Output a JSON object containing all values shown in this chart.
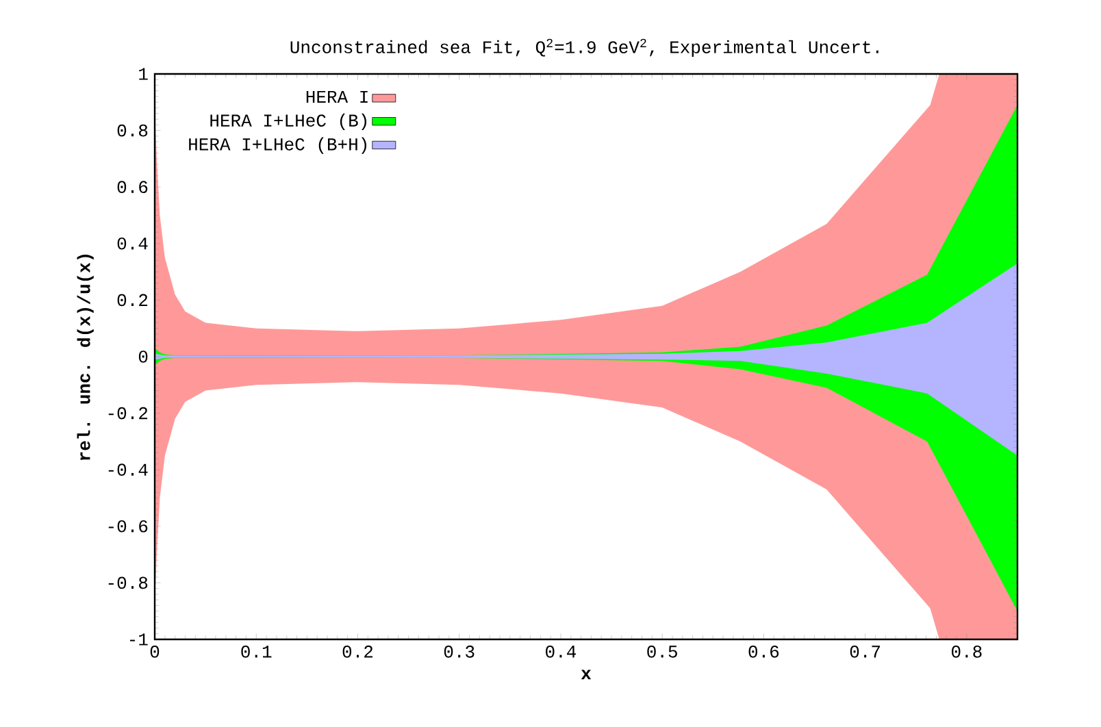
{
  "chart_data": {
    "type": "line",
    "title": "Unconstrained sea Fit, Q$^{2}$=1.9 GeV$^{2}$, Experimental Uncert.",
    "xlabel": "x",
    "ylabel": "rel. unc. d(x)/u(x)",
    "xlim": [
      0,
      0.85
    ],
    "ylim": [
      -1,
      1
    ],
    "xticks": [
      0,
      0.1,
      0.2,
      0.3,
      0.4,
      0.5,
      0.6,
      0.7,
      0.8
    ],
    "yticks": [
      -1,
      -0.8,
      -0.6,
      -0.4,
      -0.2,
      0,
      0.2,
      0.4,
      0.6,
      0.8,
      1
    ],
    "grid": false,
    "legend": "top left",
    "series": [
      {
        "name": "HERA I",
        "color": "#ff9999",
        "x": [
          0,
          0.002,
          0.005,
          0.01,
          0.02,
          0.03,
          0.05,
          0.1,
          0.2,
          0.3,
          0.4,
          0.5,
          0.577,
          0.662,
          0.764,
          0.773,
          0.85
        ],
        "values": [
          null,
          null,
          null,
          null,
          null,
          null,
          null,
          null,
          null,
          null,
          null,
          null,
          null,
          null,
          null,
          null,
          null
        ],
        "upper": [
          0.87,
          0.7,
          0.5,
          0.35,
          0.22,
          0.16,
          0.12,
          0.1,
          0.09,
          0.1,
          0.13,
          0.18,
          0.3,
          0.47,
          0.89,
          1,
          1
        ],
        "lower": [
          -0.87,
          -0.7,
          -0.5,
          -0.35,
          -0.22,
          -0.16,
          -0.12,
          -0.1,
          -0.09,
          -0.1,
          -0.13,
          -0.18,
          -0.3,
          -0.47,
          -0.89,
          -1,
          -1
        ]
      },
      {
        "name": "HERA I+LHeC (B)",
        "color": "#00ff00",
        "x": [
          0,
          0.005,
          0.01,
          0.02,
          0.1,
          0.3,
          0.5,
          0.577,
          0.662,
          0.761,
          0.85
        ],
        "values": [
          null,
          null,
          null,
          null,
          null,
          null,
          null,
          null,
          null,
          null,
          null
        ],
        "upper": [
          0.03,
          0.015,
          0.008,
          0.005,
          0.004,
          0.005,
          0.015,
          0.035,
          0.11,
          0.29,
          0.89
        ],
        "lower": [
          -0.03,
          -0.015,
          -0.008,
          -0.005,
          -0.004,
          -0.005,
          -0.015,
          -0.045,
          -0.11,
          -0.3,
          -0.9
        ]
      },
      {
        "name": "HERA I+LHeC (B+H)",
        "color": "#b4b4ff",
        "x": [
          0,
          0.01,
          0.1,
          0.3,
          0.5,
          0.577,
          0.662,
          0.761,
          0.85
        ],
        "values": [
          null,
          null,
          null,
          null,
          null,
          null,
          null,
          null,
          null
        ],
        "upper": [
          0.01,
          0.004,
          0.003,
          0.004,
          0.01,
          0.02,
          0.05,
          0.12,
          0.33
        ],
        "lower": [
          -0.01,
          -0.004,
          -0.003,
          -0.004,
          -0.01,
          -0.015,
          -0.06,
          -0.13,
          -0.35
        ]
      }
    ]
  }
}
